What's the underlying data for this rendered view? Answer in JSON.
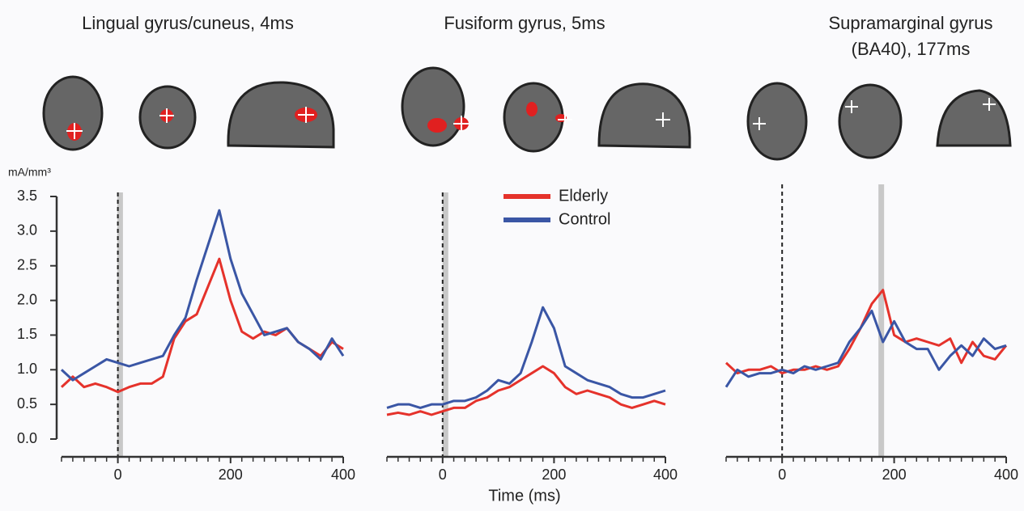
{
  "chart_data": [
    {
      "type": "line",
      "title": [
        "Lingual gyrus/cuneus, 4ms"
      ],
      "ylabel": "mA/mm³",
      "x": [
        -100,
        -80,
        -60,
        -40,
        -20,
        0,
        20,
        40,
        60,
        80,
        100,
        120,
        140,
        160,
        180,
        200,
        220,
        240,
        260,
        280,
        300,
        320,
        340,
        360,
        380,
        400
      ],
      "xlim": [
        -100,
        400
      ],
      "xticks": [
        0,
        200,
        400
      ],
      "ylim": [
        0,
        3.5
      ],
      "yticks": [
        {
          "value": 0,
          "label": "0.0"
        },
        0.5,
        {
          "value": 1,
          "label": "1.0"
        },
        1.5,
        {
          "value": 2,
          "label": "2.0"
        },
        2.5,
        {
          "value": 3,
          "label": "3.0"
        },
        3.5
      ],
      "vline": 0,
      "highlight_x": 4,
      "series": [
        {
          "name": "Elderly",
          "color": "#e5322b",
          "values": [
            0.75,
            0.9,
            0.75,
            0.8,
            0.75,
            0.68,
            0.75,
            0.8,
            0.8,
            0.9,
            1.45,
            1.7,
            1.8,
            2.2,
            2.6,
            2.0,
            1.55,
            1.45,
            1.55,
            1.5,
            1.6,
            1.4,
            1.3,
            1.2,
            1.4,
            1.3
          ]
        },
        {
          "name": "Control",
          "color": "#3a56a5",
          "values": [
            1.0,
            0.85,
            0.95,
            1.05,
            1.15,
            1.1,
            1.05,
            1.1,
            1.15,
            1.2,
            1.5,
            1.75,
            2.3,
            2.8,
            3.3,
            2.6,
            2.1,
            1.8,
            1.5,
            1.55,
            1.6,
            1.4,
            1.3,
            1.15,
            1.45,
            1.2
          ]
        }
      ]
    },
    {
      "type": "line",
      "title": [
        "Fusiform gyrus, 5ms"
      ],
      "xlabel": "Time (ms)",
      "legend": "top",
      "x": [
        -100,
        -80,
        -60,
        -40,
        -20,
        0,
        20,
        40,
        60,
        80,
        100,
        120,
        140,
        160,
        180,
        200,
        220,
        240,
        260,
        280,
        300,
        320,
        340,
        360,
        380,
        400
      ],
      "xlim": [
        -100,
        400
      ],
      "xticks": [
        0,
        200,
        400
      ],
      "ylim": [
        0,
        3.5
      ],
      "vline": 0,
      "highlight_x": 5,
      "series": [
        {
          "name": "Elderly",
          "color": "#e5322b",
          "values": [
            0.35,
            0.38,
            0.35,
            0.4,
            0.35,
            0.4,
            0.45,
            0.45,
            0.55,
            0.6,
            0.7,
            0.75,
            0.85,
            0.95,
            1.05,
            0.95,
            0.75,
            0.65,
            0.7,
            0.65,
            0.6,
            0.5,
            0.45,
            0.5,
            0.55,
            0.5
          ]
        },
        {
          "name": "Control",
          "color": "#3a56a5",
          "values": [
            0.45,
            0.5,
            0.5,
            0.45,
            0.5,
            0.5,
            0.55,
            0.55,
            0.6,
            0.7,
            0.85,
            0.8,
            0.95,
            1.4,
            1.9,
            1.6,
            1.05,
            0.95,
            0.85,
            0.8,
            0.75,
            0.65,
            0.6,
            0.6,
            0.65,
            0.7
          ]
        }
      ]
    },
    {
      "type": "line",
      "title": [
        "Supramarginal gyrus",
        "(BA40), 177ms"
      ],
      "x": [
        -100,
        -80,
        -60,
        -40,
        -20,
        0,
        20,
        40,
        60,
        80,
        100,
        120,
        140,
        160,
        180,
        200,
        220,
        240,
        260,
        280,
        300,
        320,
        340,
        360,
        380,
        400
      ],
      "xlim": [
        -100,
        400
      ],
      "xticks": [
        0,
        200,
        400
      ],
      "ylim": [
        0,
        3.5
      ],
      "vline": 0,
      "highlight_x": 177,
      "series": [
        {
          "name": "Elderly",
          "color": "#e5322b",
          "values": [
            1.1,
            0.95,
            1.0,
            1.0,
            1.05,
            0.95,
            1.0,
            1.0,
            1.05,
            1.0,
            1.05,
            1.3,
            1.6,
            1.95,
            2.15,
            1.5,
            1.4,
            1.45,
            1.4,
            1.35,
            1.45,
            1.1,
            1.4,
            1.2,
            1.15,
            1.35
          ]
        },
        {
          "name": "Control",
          "color": "#3a56a5",
          "values": [
            0.75,
            1.0,
            0.9,
            0.95,
            0.95,
            1.0,
            0.95,
            1.05,
            1.0,
            1.05,
            1.1,
            1.4,
            1.6,
            1.85,
            1.4,
            1.7,
            1.4,
            1.3,
            1.3,
            1.0,
            1.2,
            1.35,
            1.2,
            1.45,
            1.3,
            1.35
          ]
        }
      ]
    }
  ]
}
